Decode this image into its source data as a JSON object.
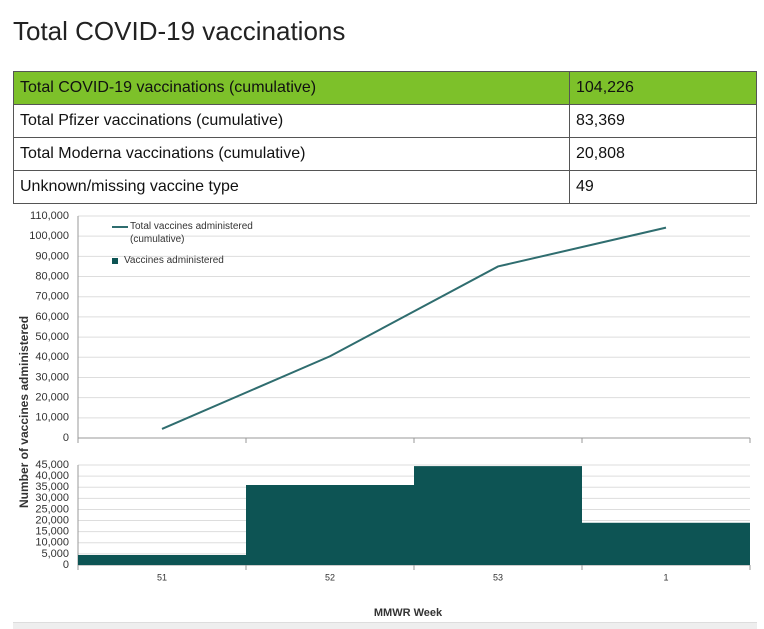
{
  "title": "Total COVID-19 vaccinations",
  "table": {
    "rows": [
      [
        "Total COVID-19 vaccinations (cumulative)",
        "104,226"
      ],
      [
        "Total Pfizer vaccinations (cumulative)",
        "83,369"
      ],
      [
        "Total Moderna vaccinations (cumulative)",
        "20,808"
      ],
      [
        "Unknown/missing vaccine type",
        "49"
      ]
    ]
  },
  "chart_data": [
    {
      "type": "line",
      "y_label": "Number of vaccines administered",
      "series": [
        {
          "name": "Total vaccines administered (cumulative)",
          "color": "#2f6d6f",
          "values": [
            4500,
            40500,
            85000,
            104226
          ]
        }
      ],
      "ylim": [
        0,
        110000
      ],
      "yticks": [
        0,
        {
          "value": 10000,
          "label": "10,000"
        },
        {
          "value": 20000,
          "label": "20,000"
        },
        {
          "value": 30000,
          "label": "30,000"
        },
        {
          "value": 40000,
          "label": "40,000"
        },
        {
          "value": 50000,
          "label": "50,000"
        },
        {
          "value": 60000,
          "label": "60,000"
        },
        {
          "value": 70000,
          "label": "70,000"
        },
        {
          "value": 80000,
          "label": "80,000"
        },
        {
          "value": 90000,
          "label": "90,000"
        },
        {
          "value": 100000,
          "label": "100,000"
        },
        {
          "value": 110000,
          "label": "110,000"
        }
      ],
      "grid": true
    },
    {
      "type": "bar",
      "x_label": "MMWR Week",
      "categories": [
        "51",
        "52",
        "53",
        "1"
      ],
      "series": [
        {
          "name": "Vaccines administered",
          "color": "#0d5454",
          "values": [
            4500,
            36000,
            44500,
            19000
          ]
        }
      ],
      "ylim": [
        0,
        45000
      ],
      "yticks": [
        0,
        {
          "value": 5000,
          "label": "5,000"
        },
        {
          "value": 10000,
          "label": "10,000"
        },
        {
          "value": 15000,
          "label": "15,000"
        },
        {
          "value": 20000,
          "label": "20,000"
        },
        {
          "value": 25000,
          "label": "25,000"
        },
        {
          "value": 30000,
          "label": "30,000"
        },
        {
          "value": 35000,
          "label": "35,000"
        },
        {
          "value": 40000,
          "label": "40,000"
        },
        {
          "value": 45000,
          "label": "45,000"
        }
      ],
      "grid": true
    }
  ]
}
